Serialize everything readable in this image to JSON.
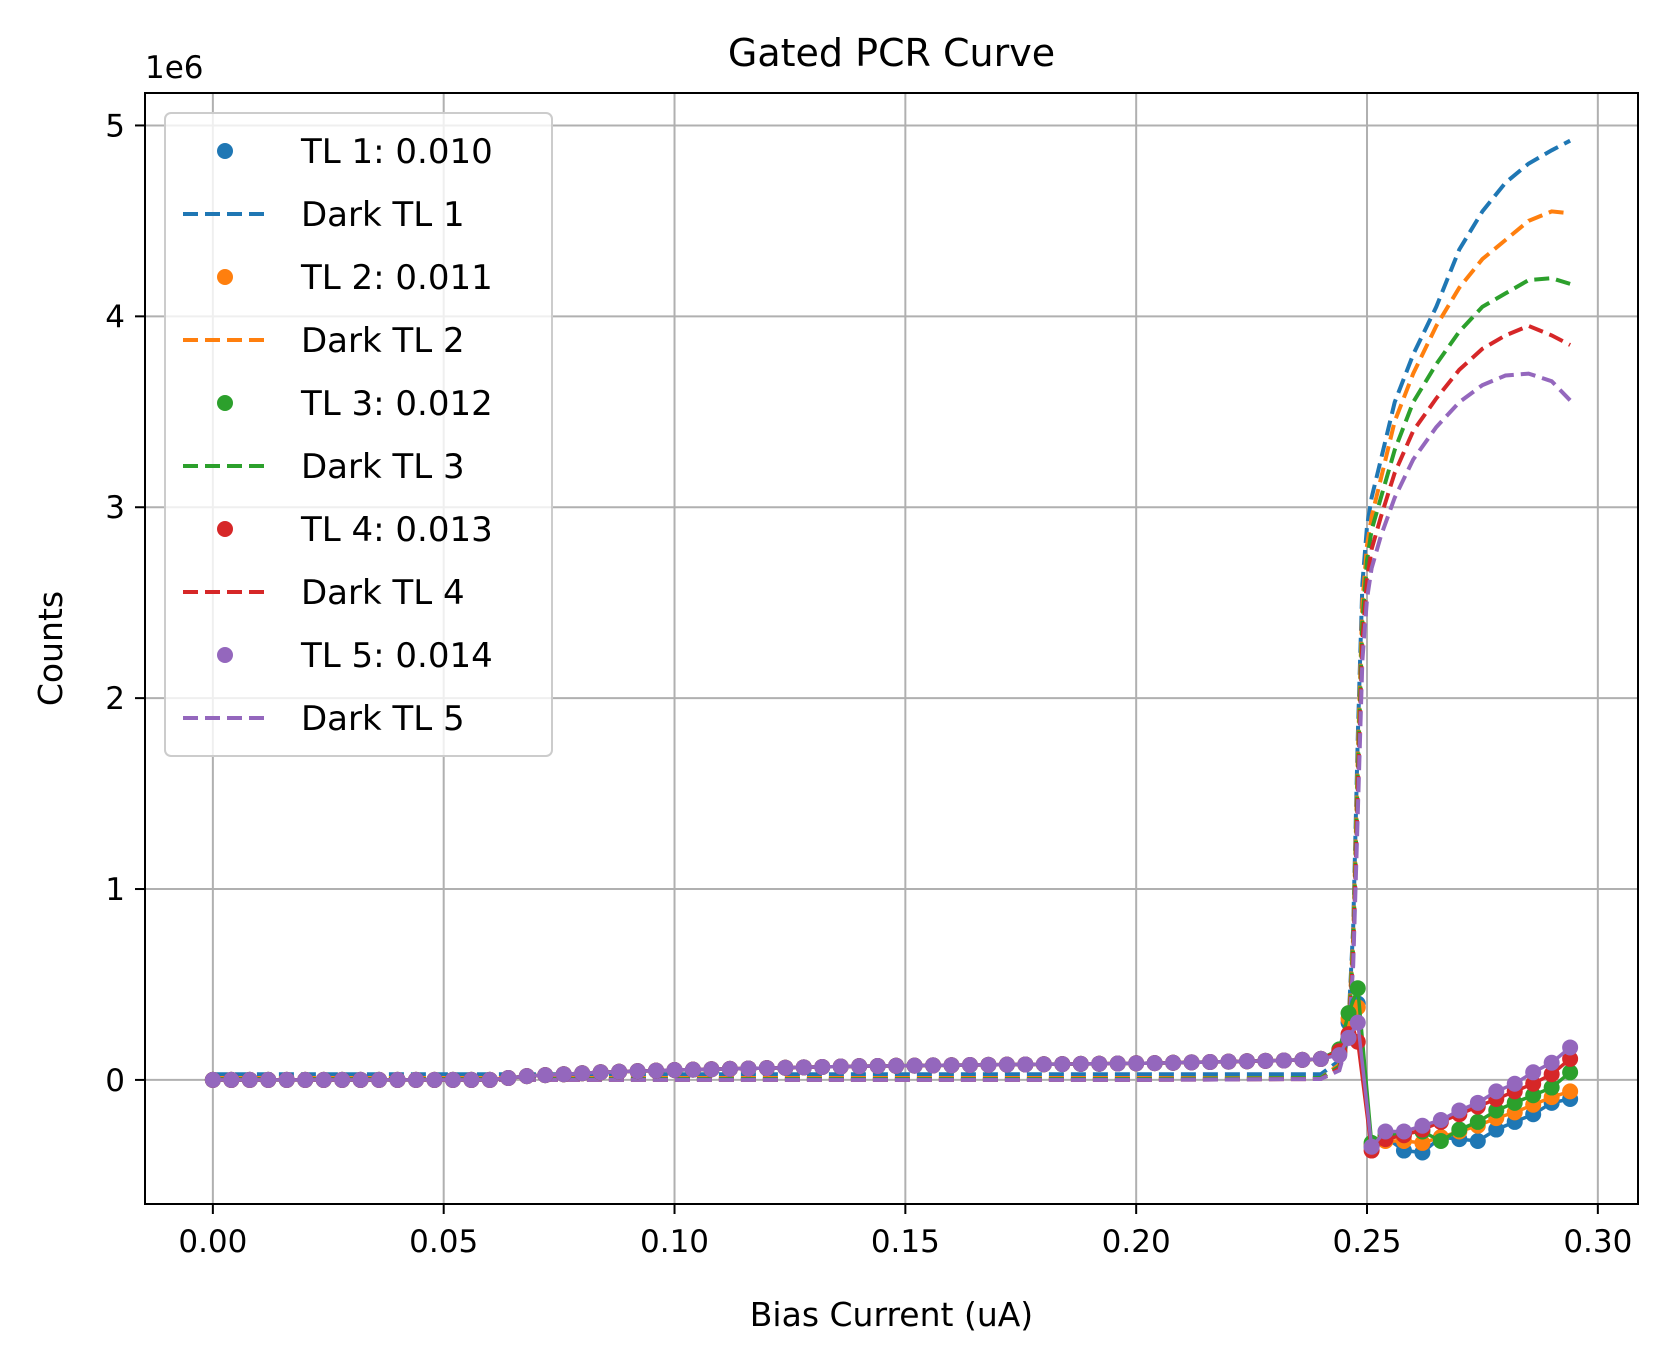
{
  "chart_data": {
    "type": "line",
    "title": "Gated PCR Curve",
    "xlabel": "Bias Current (uA)",
    "ylabel": "Counts",
    "y_offset_text": "1e6",
    "xlim": [
      -0.0147,
      0.3087
    ],
    "ylim": [
      -0.65,
      5.17
    ],
    "x_scale": "linear",
    "y_scale_units": "x1e6 counts",
    "grid": true,
    "legend_position": "upper-left",
    "x_ticks": [
      0.0,
      0.05,
      0.1,
      0.15,
      0.2,
      0.25,
      0.3
    ],
    "x_tick_labels": [
      "0.00",
      "0.05",
      "0.10",
      "0.15",
      "0.20",
      "0.25",
      "0.30"
    ],
    "y_ticks": [
      0,
      1,
      2,
      3,
      4,
      5
    ],
    "y_tick_labels": [
      "0",
      "1",
      "2",
      "3",
      "4",
      "5"
    ],
    "light_x": [
      0,
      0.004,
      0.008,
      0.012,
      0.016,
      0.02,
      0.024,
      0.028,
      0.032,
      0.036,
      0.04,
      0.044,
      0.048,
      0.052,
      0.056,
      0.06,
      0.064,
      0.068,
      0.072,
      0.076,
      0.08,
      0.084,
      0.088,
      0.092,
      0.096,
      0.1,
      0.104,
      0.108,
      0.112,
      0.116,
      0.12,
      0.124,
      0.128,
      0.132,
      0.136,
      0.14,
      0.144,
      0.148,
      0.152,
      0.156,
      0.16,
      0.164,
      0.168,
      0.172,
      0.176,
      0.18,
      0.184,
      0.188,
      0.192,
      0.196,
      0.2,
      0.204,
      0.208,
      0.212,
      0.216,
      0.22,
      0.224,
      0.228,
      0.232,
      0.236,
      0.24,
      0.244,
      0.246,
      0.248,
      0.251,
      0.254,
      0.258,
      0.262,
      0.266,
      0.27,
      0.274,
      0.278,
      0.282,
      0.286,
      0.29,
      0.294
    ],
    "dark_x": [
      0,
      0.05,
      0.1,
      0.15,
      0.2,
      0.24,
      0.244,
      0.246,
      0.247,
      0.248,
      0.249,
      0.25,
      0.251,
      0.253,
      0.256,
      0.26,
      0.265,
      0.27,
      0.275,
      0.28,
      0.285,
      0.29,
      0.294
    ],
    "series": [
      {
        "name": "TL 1: 0.010",
        "kind": "light",
        "color": "#1f77b4",
        "values": [
          0,
          0,
          0,
          0,
          0,
          0,
          0,
          0,
          0,
          0,
          0,
          0,
          0,
          0,
          0,
          0,
          0.01,
          0.02,
          0.025,
          0.03,
          0.035,
          0.04,
          0.043,
          0.046,
          0.049,
          0.052,
          0.054,
          0.056,
          0.058,
          0.06,
          0.062,
          0.064,
          0.066,
          0.068,
          0.07,
          0.072,
          0.073,
          0.074,
          0.075,
          0.076,
          0.077,
          0.078,
          0.079,
          0.08,
          0.081,
          0.082,
          0.083,
          0.084,
          0.085,
          0.086,
          0.087,
          0.088,
          0.09,
          0.092,
          0.094,
          0.096,
          0.098,
          0.1,
          0.102,
          0.105,
          0.11,
          0.14,
          0.3,
          0.4,
          -0.35,
          -0.3,
          -0.37,
          -0.38,
          -0.3,
          -0.31,
          -0.32,
          -0.26,
          -0.22,
          -0.18,
          -0.12,
          -0.1
        ]
      },
      {
        "name": "Dark TL 1",
        "kind": "dark",
        "color": "#1f77b4",
        "values": [
          0.03,
          0.03,
          0.03,
          0.03,
          0.03,
          0.03,
          0.1,
          0.3,
          0.8,
          1.8,
          2.6,
          2.9,
          3.05,
          3.25,
          3.55,
          3.8,
          4.05,
          4.35,
          4.55,
          4.7,
          4.8,
          4.87,
          4.92
        ]
      },
      {
        "name": "TL 2: 0.011",
        "kind": "light",
        "color": "#ff7f0e",
        "values": [
          0,
          0,
          0,
          0,
          0,
          0,
          0,
          0,
          0,
          0,
          0,
          0,
          0,
          0,
          0,
          0,
          0.01,
          0.02,
          0.025,
          0.03,
          0.035,
          0.04,
          0.043,
          0.046,
          0.049,
          0.052,
          0.054,
          0.056,
          0.058,
          0.06,
          0.062,
          0.064,
          0.066,
          0.068,
          0.07,
          0.072,
          0.073,
          0.074,
          0.075,
          0.076,
          0.077,
          0.078,
          0.079,
          0.08,
          0.081,
          0.082,
          0.083,
          0.084,
          0.085,
          0.086,
          0.087,
          0.088,
          0.09,
          0.092,
          0.094,
          0.096,
          0.098,
          0.1,
          0.102,
          0.105,
          0.11,
          0.15,
          0.32,
          0.38,
          -0.34,
          -0.32,
          -0.32,
          -0.33,
          -0.3,
          -0.27,
          -0.24,
          -0.2,
          -0.17,
          -0.13,
          -0.09,
          -0.06
        ]
      },
      {
        "name": "Dark TL 2",
        "kind": "dark",
        "color": "#ff7f0e",
        "values": [
          0.01,
          0.01,
          0.01,
          0.01,
          0.01,
          0.01,
          0.08,
          0.28,
          0.75,
          1.7,
          2.5,
          2.8,
          2.95,
          3.15,
          3.45,
          3.7,
          3.95,
          4.15,
          4.3,
          4.4,
          4.5,
          4.55,
          4.54
        ]
      },
      {
        "name": "TL 3: 0.012",
        "kind": "light",
        "color": "#2ca02c",
        "values": [
          0,
          0,
          0,
          0,
          0,
          0,
          0,
          0,
          0,
          0,
          0,
          0,
          0,
          0,
          0,
          0,
          0.01,
          0.02,
          0.025,
          0.03,
          0.035,
          0.04,
          0.043,
          0.046,
          0.049,
          0.052,
          0.054,
          0.056,
          0.058,
          0.06,
          0.062,
          0.064,
          0.066,
          0.068,
          0.07,
          0.072,
          0.073,
          0.074,
          0.075,
          0.076,
          0.077,
          0.078,
          0.079,
          0.08,
          0.081,
          0.082,
          0.083,
          0.084,
          0.085,
          0.086,
          0.087,
          0.088,
          0.09,
          0.092,
          0.094,
          0.096,
          0.098,
          0.1,
          0.102,
          0.105,
          0.11,
          0.16,
          0.35,
          0.48,
          -0.33,
          -0.29,
          -0.28,
          -0.27,
          -0.32,
          -0.26,
          -0.22,
          -0.16,
          -0.12,
          -0.08,
          -0.04,
          0.04
        ]
      },
      {
        "name": "Dark TL 3",
        "kind": "dark",
        "color": "#2ca02c",
        "values": [
          0.005,
          0.005,
          0.005,
          0.005,
          0.005,
          0.01,
          0.07,
          0.26,
          0.7,
          1.6,
          2.4,
          2.72,
          2.88,
          3.05,
          3.3,
          3.55,
          3.75,
          3.92,
          4.05,
          4.12,
          4.19,
          4.2,
          4.17
        ]
      },
      {
        "name": "TL 4: 0.013",
        "kind": "light",
        "color": "#d62728",
        "values": [
          0,
          0,
          0,
          0,
          0,
          0,
          0,
          0,
          0,
          0,
          0,
          0,
          0,
          0,
          0,
          0,
          0.01,
          0.02,
          0.025,
          0.03,
          0.035,
          0.04,
          0.043,
          0.046,
          0.049,
          0.052,
          0.054,
          0.056,
          0.058,
          0.06,
          0.062,
          0.064,
          0.066,
          0.068,
          0.07,
          0.072,
          0.073,
          0.074,
          0.075,
          0.076,
          0.077,
          0.078,
          0.079,
          0.08,
          0.081,
          0.082,
          0.083,
          0.084,
          0.085,
          0.086,
          0.087,
          0.088,
          0.09,
          0.092,
          0.094,
          0.096,
          0.098,
          0.1,
          0.102,
          0.105,
          0.11,
          0.15,
          0.24,
          0.2,
          -0.37,
          -0.31,
          -0.29,
          -0.26,
          -0.22,
          -0.18,
          -0.14,
          -0.1,
          -0.06,
          -0.02,
          0.03,
          0.11
        ]
      },
      {
        "name": "Dark TL 4",
        "kind": "dark",
        "color": "#d62728",
        "values": [
          0.0,
          0.0,
          0.0,
          0.0,
          0.0,
          0.005,
          0.06,
          0.24,
          0.65,
          1.5,
          2.3,
          2.62,
          2.78,
          2.95,
          3.18,
          3.4,
          3.57,
          3.72,
          3.83,
          3.9,
          3.95,
          3.9,
          3.85
        ]
      },
      {
        "name": "TL 5: 0.014",
        "kind": "light",
        "color": "#9467bd",
        "values": [
          0,
          0,
          0,
          0,
          0,
          0,
          0,
          0,
          0,
          0,
          0,
          0,
          0,
          0,
          0,
          0,
          0.01,
          0.02,
          0.025,
          0.03,
          0.035,
          0.04,
          0.043,
          0.046,
          0.049,
          0.052,
          0.054,
          0.056,
          0.058,
          0.06,
          0.062,
          0.064,
          0.066,
          0.068,
          0.07,
          0.072,
          0.073,
          0.074,
          0.075,
          0.076,
          0.077,
          0.078,
          0.079,
          0.08,
          0.081,
          0.082,
          0.083,
          0.084,
          0.085,
          0.086,
          0.087,
          0.088,
          0.09,
          0.092,
          0.094,
          0.096,
          0.098,
          0.1,
          0.102,
          0.105,
          0.11,
          0.13,
          0.22,
          0.3,
          -0.35,
          -0.27,
          -0.27,
          -0.24,
          -0.21,
          -0.16,
          -0.12,
          -0.06,
          -0.02,
          0.04,
          0.09,
          0.17
        ]
      },
      {
        "name": "Dark TL 5",
        "kind": "dark",
        "color": "#9467bd",
        "values": [
          0.0,
          0.0,
          0.0,
          0.0,
          0.0,
          0.005,
          0.05,
          0.22,
          0.6,
          1.4,
          2.2,
          2.52,
          2.68,
          2.85,
          3.05,
          3.25,
          3.42,
          3.55,
          3.64,
          3.69,
          3.7,
          3.66,
          3.56
        ]
      }
    ]
  }
}
